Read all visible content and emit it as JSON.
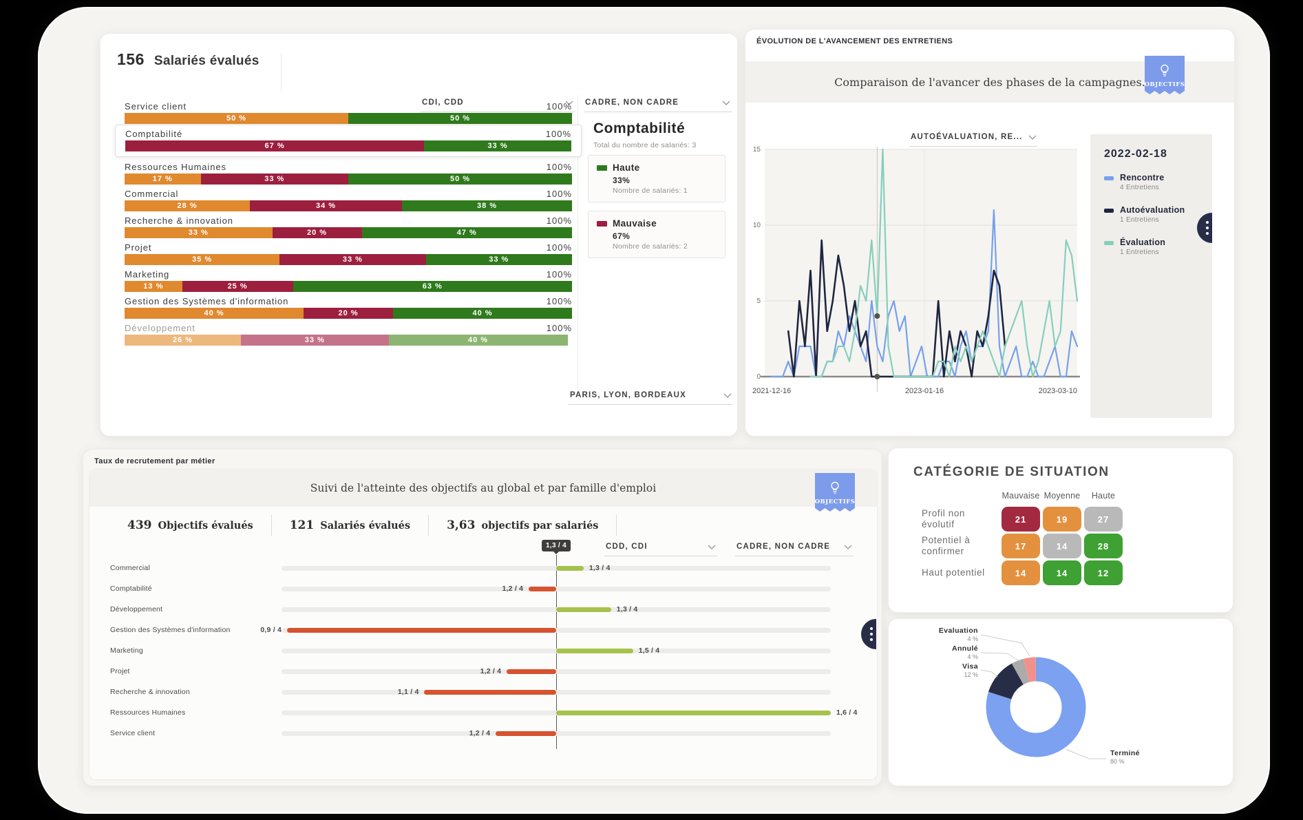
{
  "salaries": {
    "count": "156",
    "count_label": "Salariés évalués",
    "dropdown_contract": "CDI, CDD",
    "dropdown_grade": "CADRE, NON CADRE",
    "dropdown_cities": "PARIS, LYON, BORDEAUX",
    "rows": [
      {
        "label": "Service client",
        "total": "100%",
        "muted": false,
        "highlight": false,
        "segments": [
          {
            "text": "50 %",
            "pct": 50,
            "color": "#E0892F"
          },
          {
            "text": "50 %",
            "pct": 50,
            "color": "#2F7A1C"
          }
        ]
      },
      {
        "label": "Comptabilité",
        "total": "100%",
        "muted": false,
        "highlight": true,
        "segments": [
          {
            "text": "67 %",
            "pct": 67,
            "color": "#9C1F3E"
          },
          {
            "text": "33 %",
            "pct": 33,
            "color": "#2F7A1C"
          }
        ]
      },
      {
        "label": "Ressources Humaines",
        "total": "100%",
        "muted": false,
        "highlight": false,
        "segments": [
          {
            "text": "17 %",
            "pct": 17,
            "color": "#E0892F"
          },
          {
            "text": "33 %",
            "pct": 33,
            "color": "#9C1F3E"
          },
          {
            "text": "50 %",
            "pct": 50,
            "color": "#2F7A1C"
          }
        ]
      },
      {
        "label": "Commercial",
        "total": "100%",
        "muted": false,
        "highlight": false,
        "segments": [
          {
            "text": "28 %",
            "pct": 28,
            "color": "#E0892F"
          },
          {
            "text": "34 %",
            "pct": 34,
            "color": "#9C1F3E"
          },
          {
            "text": "38 %",
            "pct": 38,
            "color": "#2F7A1C"
          }
        ]
      },
      {
        "label": "Recherche & innovation",
        "total": "100%",
        "muted": false,
        "highlight": false,
        "segments": [
          {
            "text": "33 %",
            "pct": 33,
            "color": "#E0892F"
          },
          {
            "text": "20 %",
            "pct": 20,
            "color": "#9C1F3E"
          },
          {
            "text": "47 %",
            "pct": 47,
            "color": "#2F7A1C"
          }
        ]
      },
      {
        "label": "Projet",
        "total": "100%",
        "muted": false,
        "highlight": false,
        "segments": [
          {
            "text": "35 %",
            "pct": 35,
            "color": "#E0892F"
          },
          {
            "text": "33 %",
            "pct": 33,
            "color": "#9C1F3E"
          },
          {
            "text": "33 %",
            "pct": 33,
            "color": "#2F7A1C"
          }
        ]
      },
      {
        "label": "Marketing",
        "total": "100%",
        "muted": false,
        "highlight": false,
        "segments": [
          {
            "text": "13 %",
            "pct": 13,
            "color": "#E0892F"
          },
          {
            "text": "25 %",
            "pct": 25,
            "color": "#9C1F3E"
          },
          {
            "text": "63 %",
            "pct": 63,
            "color": "#2F7A1C"
          }
        ]
      },
      {
        "label": "Gestion des Systèmes d'information",
        "total": "100%",
        "muted": false,
        "highlight": false,
        "segments": [
          {
            "text": "40 %",
            "pct": 40,
            "color": "#E0892F"
          },
          {
            "text": "20 %",
            "pct": 20,
            "color": "#9C1F3E"
          },
          {
            "text": "40 %",
            "pct": 40,
            "color": "#2F7A1C"
          }
        ]
      },
      {
        "label": "Développement",
        "total": "100%",
        "muted": true,
        "highlight": false,
        "segments": [
          {
            "text": "26 %",
            "pct": 26,
            "color": "#EDB87D"
          },
          {
            "text": "33 %",
            "pct": 33,
            "color": "#C4738A"
          },
          {
            "text": "40 %",
            "pct": 40,
            "color": "#8CB572"
          }
        ]
      }
    ],
    "tooltip": {
      "title": "Comptabilité",
      "subtitle": "Total du nombre de salariés: 3",
      "items": [
        {
          "name": "Haute",
          "value": "33%",
          "sub": "Nombre de salariés: 1",
          "color": "#2F7A1C"
        },
        {
          "name": "Mauvaise",
          "value": "67%",
          "sub": "Nombre de salariés: 2",
          "color": "#9C1F3E"
        }
      ]
    }
  },
  "evolution": {
    "window_title": "ÉVOLUTION DE L'AVANCEMENT DES ENTRETIENS",
    "subtitle": "Comparaison de l'avancer des phases de la campagnes.",
    "badge_label": "OBJECTIFS",
    "dropdown": "AUTOÉVALUATION, RE...",
    "legend": {
      "date": "2022-02-18",
      "items": [
        {
          "name": "Rencontre",
          "sub": "4 Entretiens",
          "color": "#76A1EB"
        },
        {
          "name": "Autoévaluation",
          "sub": "1 Entretiens",
          "color": "#1F2540"
        },
        {
          "name": "Évaluation",
          "sub": "1 Entretiens",
          "color": "#85CFBB"
        }
      ]
    },
    "chart_data": {
      "type": "line",
      "ylim": [
        0,
        15
      ],
      "yticks": [
        0,
        5,
        10,
        15
      ],
      "x_axis_labels": [
        "2021-12-16",
        "2023-01-16",
        "2023-03-10"
      ],
      "grid": true,
      "legend_position": "right",
      "crosshair": {
        "index": 19,
        "dot_values": [
          4,
          0
        ]
      },
      "series": [
        {
          "name": "Rencontre",
          "color": "#76A1EB",
          "values": [
            0,
            0,
            0,
            1,
            0,
            2,
            2,
            2,
            0,
            0,
            1,
            1,
            3,
            2,
            4,
            3,
            2,
            1,
            5,
            2,
            1,
            4,
            5,
            3,
            4,
            0,
            1,
            2,
            0,
            0,
            0,
            1,
            1,
            0,
            2,
            3,
            1,
            2,
            2,
            3,
            11,
            2,
            0,
            1,
            2,
            0,
            0,
            1,
            0,
            0,
            1,
            2,
            0,
            0,
            3,
            2
          ]
        },
        {
          "name": "Autoévaluation",
          "color": "#1F2540",
          "values": [
            null,
            null,
            null,
            3,
            0,
            5,
            2,
            7,
            0,
            9,
            3,
            5,
            8,
            6,
            3,
            5,
            2,
            3,
            0,
            0,
            0,
            0,
            0,
            0,
            0,
            0,
            0,
            0,
            0,
            0,
            5,
            0,
            3,
            1,
            3,
            2,
            0,
            3,
            2,
            4,
            7,
            6,
            2,
            null,
            null,
            null,
            null,
            null,
            null,
            null,
            null,
            null,
            null,
            null,
            null,
            null
          ]
        },
        {
          "name": "Évaluation",
          "color": "#85CFBB",
          "values": [
            null,
            null,
            null,
            null,
            null,
            null,
            null,
            0,
            0,
            0,
            1,
            1,
            2,
            2,
            1,
            3,
            6,
            5,
            9,
            4,
            15,
            2,
            0,
            0,
            0,
            0,
            0,
            0,
            0,
            0,
            1,
            1,
            0,
            2,
            1,
            2,
            1,
            2,
            3,
            2,
            1,
            0,
            2,
            3,
            4,
            5,
            2,
            0,
            1,
            3,
            5,
            2,
            3,
            9,
            8,
            5
          ]
        }
      ]
    }
  },
  "objectifs": {
    "window_title": "Taux de recrutement par métier",
    "subtitle": "Suivi de l'atteinte des objectifs au global et par famille d'emploi",
    "badge_label": "OBJECTIFS",
    "stats": [
      {
        "value": "439",
        "label": "Objectifs évalués"
      },
      {
        "value": "121",
        "label": "Salariés évalués"
      },
      {
        "value": "3,63",
        "label": "objectifs par salariés"
      }
    ],
    "dropdown_contract": "CDD, CDI",
    "dropdown_grade": "CADRE, NON CADRE",
    "ref_label": "1,3 / 4",
    "chart_data": {
      "type": "bar",
      "orientation": "horizontal-diverging",
      "reference_value": "1,3 / 4",
      "rows": [
        {
          "label": "Commercial",
          "value": "1,3 / 4",
          "side": "right",
          "len_pct": 5,
          "color": "#A6C24D"
        },
        {
          "label": "Comptabilité",
          "value": "1,2 / 4",
          "side": "left",
          "len_pct": 5,
          "color": "#D6532F"
        },
        {
          "label": "Développement",
          "value": "1,3 / 4",
          "side": "right",
          "len_pct": 10,
          "color": "#A6C24D"
        },
        {
          "label": "Gestion des Systèmes d'information",
          "value": "0,9 / 4",
          "side": "left",
          "len_pct": 49,
          "color": "#D6532F"
        },
        {
          "label": "Marketing",
          "value": "1,5 / 4",
          "side": "right",
          "len_pct": 14,
          "color": "#A6C24D"
        },
        {
          "label": "Projet",
          "value": "1,2 / 4",
          "side": "left",
          "len_pct": 9,
          "color": "#D6532F"
        },
        {
          "label": "Recherche & innovation",
          "value": "1,1 / 4",
          "side": "left",
          "len_pct": 24,
          "color": "#D6532F"
        },
        {
          "label": "Ressources Humaines",
          "value": "1,6 / 4",
          "side": "right",
          "len_pct": 50,
          "color": "#A6C24D"
        },
        {
          "label": "Service client",
          "value": "1,2 / 4",
          "side": "left",
          "len_pct": 11,
          "color": "#D6532F"
        }
      ]
    }
  },
  "categorie": {
    "title": "CATÉGORIE DE SITUATION",
    "columns": [
      "Mauvaise",
      "Moyenne",
      "Haute"
    ],
    "rows": [
      {
        "label": "Profil non évolutif",
        "cells": [
          {
            "value": "21",
            "color": "#A32941"
          },
          {
            "value": "19",
            "color": "#E3913F"
          },
          {
            "value": "27",
            "color": "#B9B9B9"
          }
        ]
      },
      {
        "label": "Potentiel à confirmer",
        "cells": [
          {
            "value": "17",
            "color": "#E3913F"
          },
          {
            "value": "14",
            "color": "#B9B9B9"
          },
          {
            "value": "28",
            "color": "#3FA033"
          }
        ]
      },
      {
        "label": "Haut potentiel",
        "cells": [
          {
            "value": "14",
            "color": "#E3913F"
          },
          {
            "value": "14",
            "color": "#3FA033"
          },
          {
            "value": "12",
            "color": "#3FA033"
          }
        ]
      }
    ]
  },
  "donut": {
    "chart_data": {
      "type": "pie",
      "slices": [
        {
          "label": "Terminé",
          "pct": 80,
          "pct_label": "80 %",
          "color": "#7BA1F0"
        },
        {
          "label": "Visa",
          "pct": 12,
          "pct_label": "12 %",
          "color": "#272D47"
        },
        {
          "label": "Annulé",
          "pct": 4,
          "pct_label": "4 %",
          "color": "#ABABAB"
        },
        {
          "label": "Evaluation",
          "pct": 4,
          "pct_label": "4 %",
          "color": "#F2918C"
        }
      ]
    }
  }
}
